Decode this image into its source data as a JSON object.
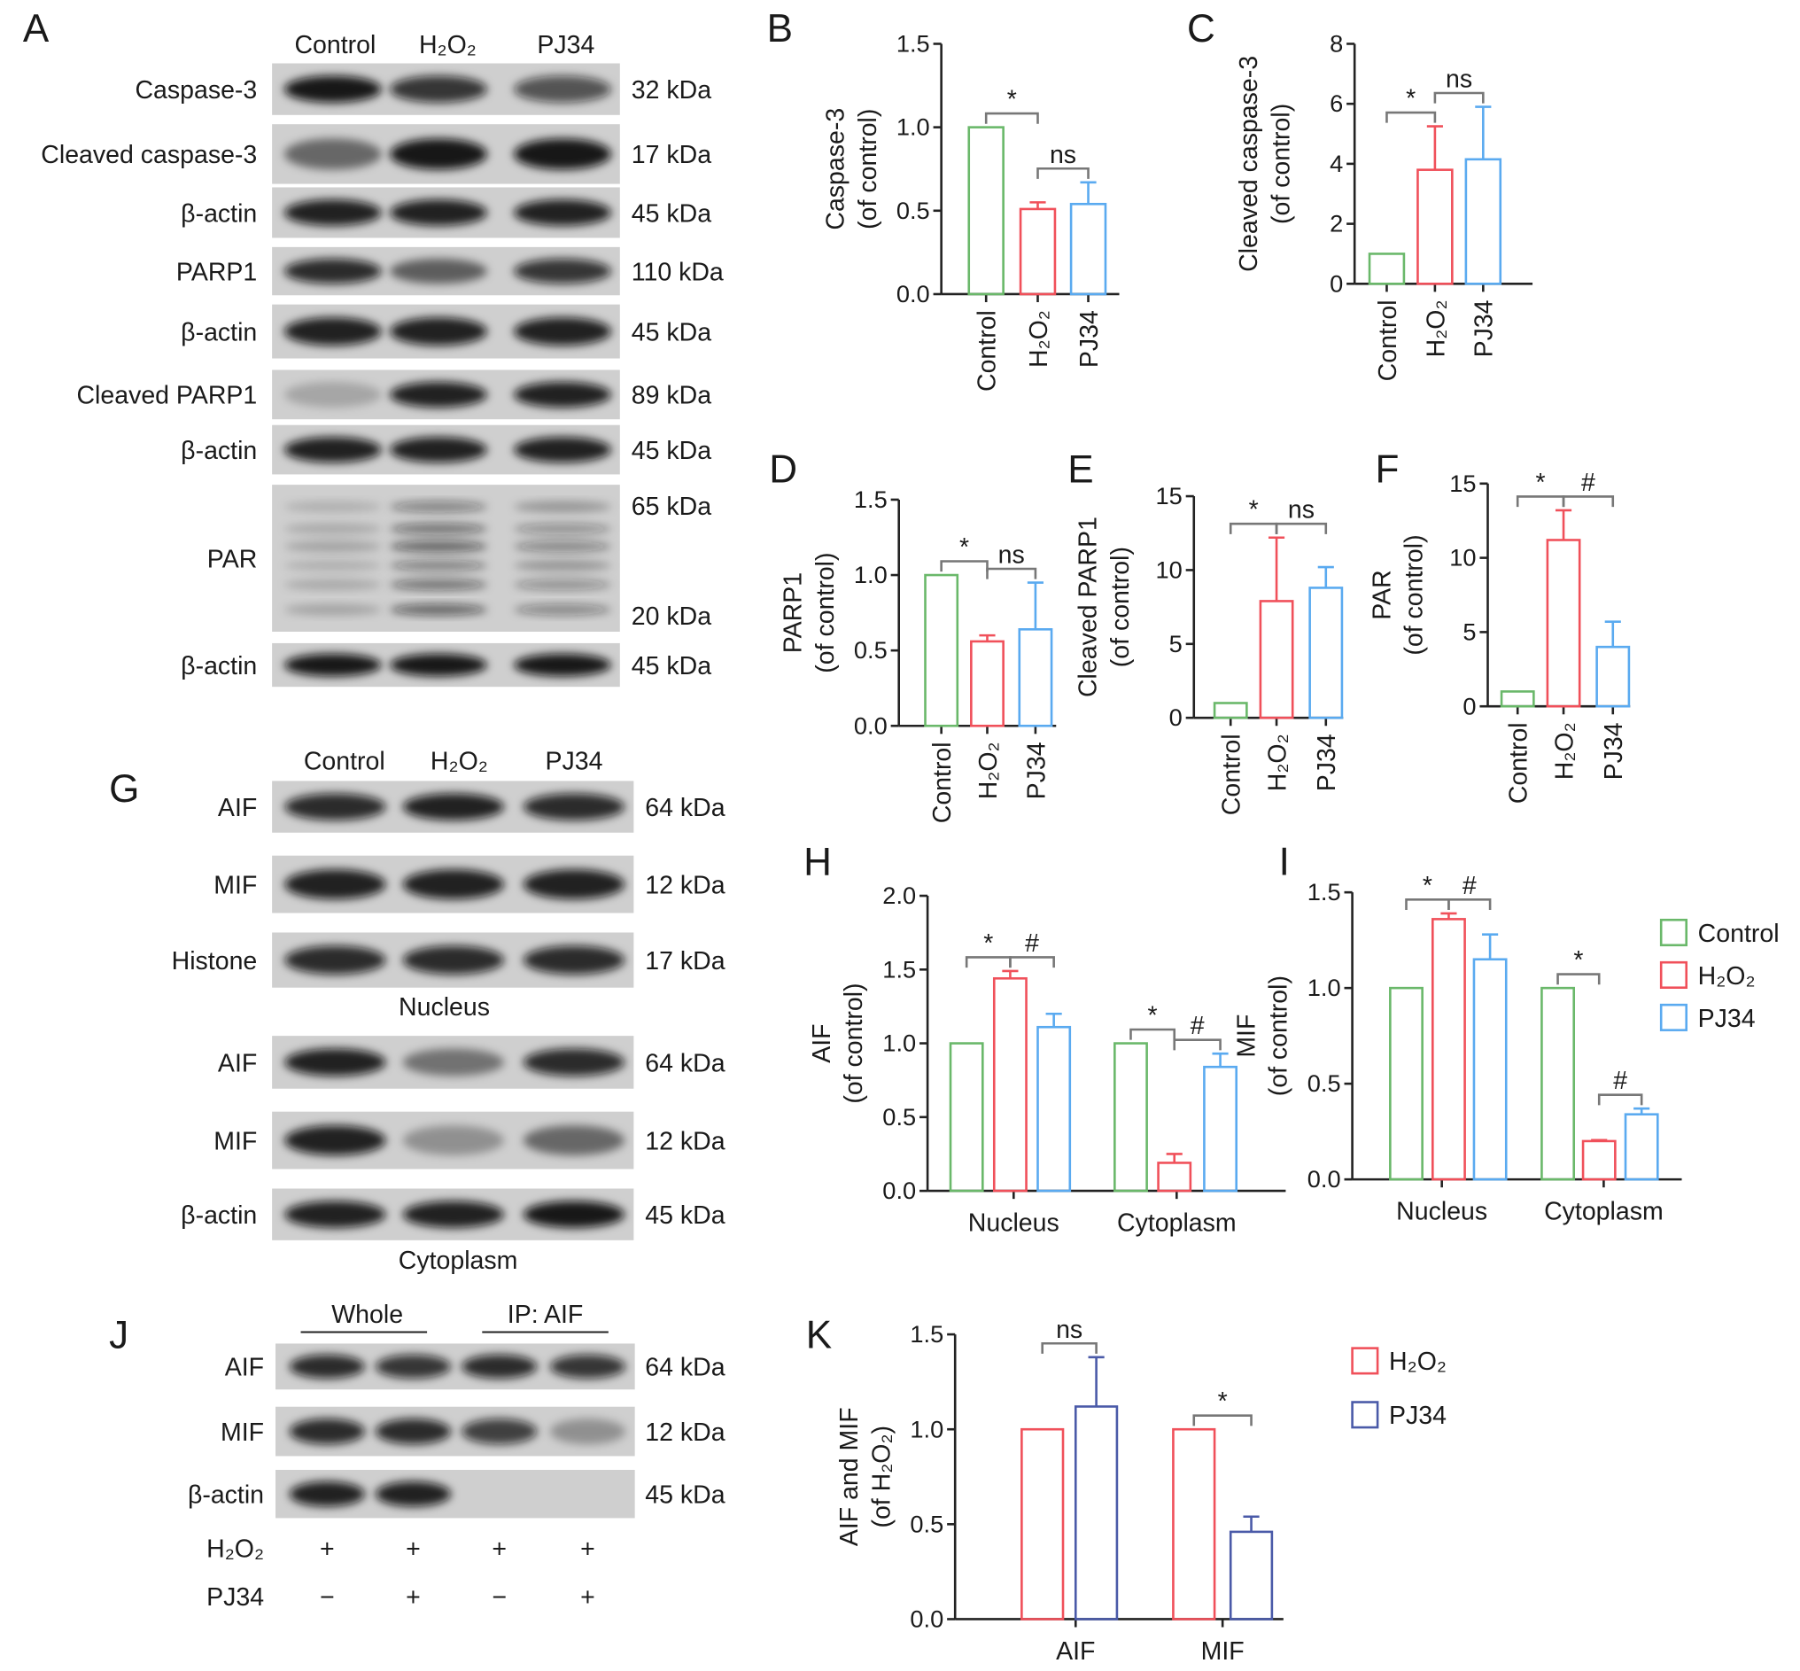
{
  "colors": {
    "control": "#6ab86a",
    "h2o2": "#f0505a",
    "pj34": "#5aaaf0",
    "pj34_k": "#4a5aa8",
    "axis": "#222222",
    "bracket": "#777777",
    "blot_bg": "#cfcfcf"
  },
  "blots": [
    {
      "panel": "A",
      "headers": [
        "Control",
        "H₂O₂",
        "PJ34"
      ],
      "rows": [
        {
          "label": "Caspase-3",
          "kda": [
            "32 kDa"
          ],
          "intensity": [
            0.95,
            0.8,
            0.65
          ]
        },
        {
          "label": "Cleaved caspase-3",
          "kda": [
            "17 kDa"
          ],
          "intensity": [
            0.5,
            0.95,
            0.95
          ]
        },
        {
          "label": "β-actin",
          "kda": [
            "45 kDa"
          ],
          "intensity": [
            0.9,
            0.9,
            0.9
          ]
        },
        {
          "label": "PARP1",
          "kda": [
            "110 kDa"
          ],
          "intensity": [
            0.85,
            0.55,
            0.8
          ]
        },
        {
          "label": "β-actin",
          "kda": [
            "45 kDa"
          ],
          "intensity": [
            0.9,
            0.9,
            0.9
          ]
        },
        {
          "label": "Cleaved PARP1",
          "kda": [
            "89 kDa"
          ],
          "intensity": [
            0.2,
            0.9,
            0.9
          ]
        },
        {
          "label": "β-actin",
          "kda": [
            "45 kDa"
          ],
          "intensity": [
            0.9,
            0.9,
            0.9
          ]
        },
        {
          "label": "PAR",
          "kda": [
            "65 kDa",
            "20 kDa"
          ],
          "intensity": [
            0.3,
            0.8,
            0.55
          ]
        },
        {
          "label": "β-actin",
          "kda": [
            "45 kDa"
          ],
          "intensity": [
            0.95,
            0.95,
            0.95
          ]
        }
      ]
    },
    {
      "panel": "G",
      "headers": [
        "Control",
        "H₂O₂",
        "PJ34"
      ],
      "sections": [
        "Nucleus",
        "Cytoplasm"
      ],
      "rows": [
        {
          "label": "AIF",
          "kda": [
            "64 kDa"
          ],
          "intensity": [
            0.85,
            0.9,
            0.85
          ]
        },
        {
          "label": "MIF",
          "kda": [
            "12 kDa"
          ],
          "intensity": [
            0.9,
            0.9,
            0.9
          ]
        },
        {
          "label": "Histone",
          "kda": [
            "17 kDa"
          ],
          "intensity": [
            0.85,
            0.85,
            0.85
          ]
        },
        {
          "label": "AIF",
          "kda": [
            "64 kDa"
          ],
          "intensity": [
            0.9,
            0.45,
            0.85
          ]
        },
        {
          "label": "MIF",
          "kda": [
            "12 kDa"
          ],
          "intensity": [
            0.9,
            0.3,
            0.5
          ]
        },
        {
          "label": "β-actin",
          "kda": [
            "45 kDa"
          ],
          "intensity": [
            0.9,
            0.9,
            0.95
          ]
        }
      ]
    },
    {
      "panel": "J",
      "headers": [
        "Whole",
        "IP: AIF"
      ],
      "rows": [
        {
          "label": "AIF",
          "kda": [
            "64 kDa"
          ],
          "intensity": [
            0.85,
            0.8,
            0.85,
            0.8
          ]
        },
        {
          "label": "MIF",
          "kda": [
            "12 kDa"
          ],
          "intensity": [
            0.85,
            0.85,
            0.75,
            0.3
          ]
        },
        {
          "label": "β-actin",
          "kda": [
            "45 kDa"
          ],
          "intensity": [
            0.9,
            0.9,
            0.0,
            0.0
          ]
        }
      ],
      "treatments": [
        {
          "label": "H₂O₂",
          "marks": [
            "+",
            "+",
            "+",
            "+"
          ]
        },
        {
          "label": "PJ34",
          "marks": [
            "−",
            "+",
            "−",
            "+"
          ]
        }
      ]
    }
  ],
  "chart_data": [
    {
      "panel": "B",
      "type": "bar",
      "ylabel": [
        "Caspase-3",
        "(of control)"
      ],
      "ylim": [
        0,
        1.5
      ],
      "yticks": [
        "0.0",
        "0.5",
        "1.0",
        "1.5"
      ],
      "categories": [
        "Control",
        "H₂O₂",
        "PJ34"
      ],
      "values": [
        1.0,
        0.51,
        0.54
      ],
      "errors": [
        0,
        0.04,
        0.13
      ],
      "annotations": [
        {
          "from": 0,
          "to": 1,
          "text": "*"
        },
        {
          "from": 1,
          "to": 2,
          "text": "ns"
        }
      ]
    },
    {
      "panel": "C",
      "type": "bar",
      "ylabel": [
        "Cleaved caspase-3",
        "(of control)"
      ],
      "ylim": [
        0,
        8
      ],
      "yticks": [
        "0",
        "2",
        "4",
        "6",
        "8"
      ],
      "categories": [
        "Control",
        "H₂O₂",
        "PJ34"
      ],
      "values": [
        1.0,
        3.8,
        4.15
      ],
      "errors": [
        0,
        1.45,
        1.75
      ],
      "annotations": [
        {
          "from": 0,
          "to": 1,
          "text": "*"
        },
        {
          "from": 1,
          "to": 2,
          "text": "ns"
        }
      ]
    },
    {
      "panel": "D",
      "type": "bar",
      "ylabel": [
        "PARP1",
        "(of control)"
      ],
      "ylim": [
        0,
        1.5
      ],
      "yticks": [
        "0.0",
        "0.5",
        "1.0",
        "1.5"
      ],
      "categories": [
        "Control",
        "H₂O₂",
        "PJ34"
      ],
      "values": [
        1.0,
        0.56,
        0.64
      ],
      "errors": [
        0,
        0.04,
        0.31
      ],
      "annotations": [
        {
          "from": 0,
          "to": 1,
          "text": "*"
        },
        {
          "from": 1,
          "to": 2,
          "text": "ns"
        }
      ]
    },
    {
      "panel": "E",
      "type": "bar",
      "ylabel": [
        "Cleaved PARP1",
        "(of control)"
      ],
      "ylim": [
        0,
        15
      ],
      "yticks": [
        "0",
        "5",
        "10",
        "15"
      ],
      "categories": [
        "Control",
        "H₂O₂",
        "PJ34"
      ],
      "values": [
        1.0,
        7.9,
        8.8
      ],
      "errors": [
        0,
        4.3,
        1.4
      ],
      "annotations": [
        {
          "from": 0,
          "to": 1,
          "text": "*"
        },
        {
          "from": 1,
          "to": 2,
          "text": "ns"
        }
      ]
    },
    {
      "panel": "F",
      "type": "bar",
      "ylabel": [
        "PAR",
        "(of control)"
      ],
      "ylim": [
        0,
        15
      ],
      "yticks": [
        "0",
        "5",
        "10",
        "15"
      ],
      "categories": [
        "Control",
        "H₂O₂",
        "PJ34"
      ],
      "values": [
        1.0,
        11.2,
        4.0
      ],
      "errors": [
        0,
        2.0,
        1.7
      ],
      "annotations": [
        {
          "from": 0,
          "to": 1,
          "text": "*"
        },
        {
          "from": 1,
          "to": 2,
          "text": "#"
        }
      ]
    },
    {
      "panel": "H",
      "type": "bar",
      "ylabel": [
        "AIF",
        "(of control)"
      ],
      "ylim": [
        0,
        2.0
      ],
      "yticks": [
        "0.0",
        "0.5",
        "1.0",
        "1.5",
        "2.0"
      ],
      "categories": [
        "Nucleus",
        "Cytoplasm"
      ],
      "series": [
        {
          "key": "control",
          "values": [
            1.0,
            1.0
          ],
          "errors": [
            0,
            0
          ]
        },
        {
          "key": "h2o2",
          "values": [
            1.44,
            0.19
          ],
          "errors": [
            0.05,
            0.06
          ]
        },
        {
          "key": "pj34",
          "values": [
            1.11,
            0.84
          ],
          "errors": [
            0.09,
            0.09
          ]
        }
      ],
      "annotations": [
        {
          "group": 0,
          "from": 0,
          "to": 1,
          "text": "*"
        },
        {
          "group": 0,
          "from": 1,
          "to": 2,
          "text": "#"
        },
        {
          "group": 1,
          "from": 0,
          "to": 1,
          "text": "*"
        },
        {
          "group": 1,
          "from": 1,
          "to": 2,
          "text": "#"
        }
      ]
    },
    {
      "panel": "I",
      "type": "bar",
      "ylabel": [
        "MIF",
        "(of control)"
      ],
      "ylim": [
        0,
        1.5
      ],
      "yticks": [
        "0.0",
        "0.5",
        "1.0",
        "1.5"
      ],
      "categories": [
        "Nucleus",
        "Cytoplasm"
      ],
      "series": [
        {
          "key": "control",
          "name": "Control",
          "values": [
            1.0,
            1.0
          ],
          "errors": [
            0,
            0
          ]
        },
        {
          "key": "h2o2",
          "name": "H₂O₂",
          "values": [
            1.36,
            0.2
          ],
          "errors": [
            0.03,
            0.005
          ]
        },
        {
          "key": "pj34",
          "name": "PJ34",
          "values": [
            1.15,
            0.34
          ],
          "errors": [
            0.13,
            0.03
          ]
        }
      ],
      "legend": "right",
      "annotations": [
        {
          "group": 0,
          "from": 0,
          "to": 1,
          "text": "*"
        },
        {
          "group": 0,
          "from": 1,
          "to": 2,
          "text": "#"
        },
        {
          "group": 1,
          "from": 0,
          "to": 1,
          "text": "*"
        },
        {
          "group": 1,
          "from": 1,
          "to": 2,
          "text": "#"
        }
      ]
    },
    {
      "panel": "K",
      "type": "bar",
      "ylabel": [
        "AIF and MIF",
        "(of H₂O₂)"
      ],
      "ylim": [
        0,
        1.5
      ],
      "yticks": [
        "0.0",
        "0.5",
        "1.0",
        "1.5"
      ],
      "categories": [
        "AIF",
        "MIF"
      ],
      "series": [
        {
          "key": "h2o2",
          "name": "H₂O₂",
          "values": [
            1.0,
            1.0
          ],
          "errors": [
            0,
            0
          ]
        },
        {
          "key": "pj34_k",
          "name": "PJ34",
          "values": [
            1.12,
            0.46
          ],
          "errors": [
            0.26,
            0.08
          ]
        }
      ],
      "legend": "right",
      "annotations": [
        {
          "group": 0,
          "from": 0,
          "to": 1,
          "text": "ns"
        },
        {
          "group": 1,
          "from": 0,
          "to": 1,
          "text": "*"
        }
      ]
    }
  ]
}
